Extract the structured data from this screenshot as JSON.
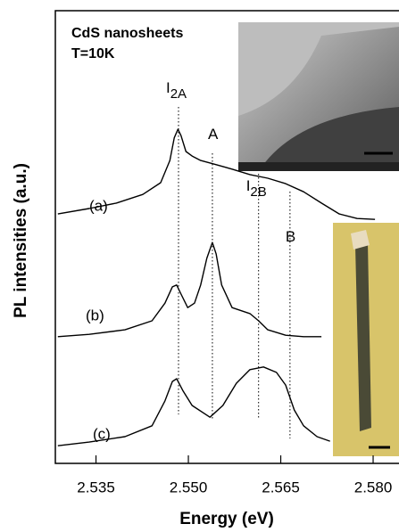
{
  "chart_data": {
    "type": "line",
    "title": "CdS nanosheets",
    "subtitle": "T=10K",
    "xlabel": "Energy (eV)",
    "ylabel": "PL intensities (a.u.)",
    "xlim": [
      2.5284,
      2.5842
    ],
    "xticks": [
      2.535,
      {
        "value": 2.55,
        "label": "2.550"
      },
      2.565,
      {
        "value": 2.58,
        "label": "2.580"
      }
    ],
    "ylim": [
      0,
      10
    ],
    "color": "#000000",
    "series": [
      {
        "name": "(a)",
        "x": [
          2.5288,
          2.5339,
          2.5383,
          2.5426,
          2.5455,
          2.547,
          2.5477,
          2.5483,
          2.5488,
          2.5496,
          2.5506,
          2.552,
          2.5542,
          2.5571,
          2.56,
          2.5629,
          2.5658,
          2.5687,
          2.5716,
          2.5745,
          2.5774,
          2.5803
        ],
        "values": [
          5.51,
          5.63,
          5.75,
          5.94,
          6.2,
          6.69,
          7.19,
          7.38,
          7.24,
          6.89,
          6.79,
          6.69,
          6.61,
          6.5,
          6.38,
          6.3,
          6.18,
          6.0,
          5.75,
          5.51,
          5.41,
          5.39
        ]
      },
      {
        "name": "(b)",
        "x": [
          2.5288,
          2.5339,
          2.5397,
          2.5441,
          2.5462,
          2.5474,
          2.5481,
          2.5488,
          2.5499,
          2.551,
          2.552,
          2.553,
          2.5539,
          2.5545,
          2.5554,
          2.5571,
          2.56,
          2.5614,
          2.5629,
          2.5658,
          2.5687,
          2.5716
        ],
        "values": [
          2.8,
          2.85,
          2.95,
          3.15,
          3.54,
          3.9,
          3.94,
          3.74,
          3.44,
          3.54,
          3.94,
          4.53,
          4.88,
          4.63,
          3.94,
          3.44,
          3.31,
          3.15,
          2.95,
          2.83,
          2.8,
          2.8
        ]
      },
      {
        "name": "(c)",
        "x": [
          2.5288,
          2.5339,
          2.5397,
          2.5441,
          2.5462,
          2.5474,
          2.5481,
          2.5491,
          2.5506,
          2.5535,
          2.5556,
          2.5578,
          2.56,
          2.5622,
          2.5643,
          2.5658,
          2.5672,
          2.5687,
          2.5709,
          2.573
        ],
        "values": [
          0.39,
          0.47,
          0.59,
          0.83,
          1.38,
          1.81,
          1.87,
          1.61,
          1.28,
          1.02,
          1.28,
          1.77,
          2.07,
          2.13,
          2.01,
          1.73,
          1.18,
          0.83,
          0.59,
          0.49
        ]
      }
    ],
    "annotations": [
      {
        "text": "I",
        "sub": "2A",
        "x": 2.5484
      },
      {
        "text": "A",
        "x": 2.5539
      },
      {
        "text": "I",
        "sub": "2B",
        "x": 2.5614
      },
      {
        "text": "B",
        "x": 2.5665
      }
    ]
  }
}
